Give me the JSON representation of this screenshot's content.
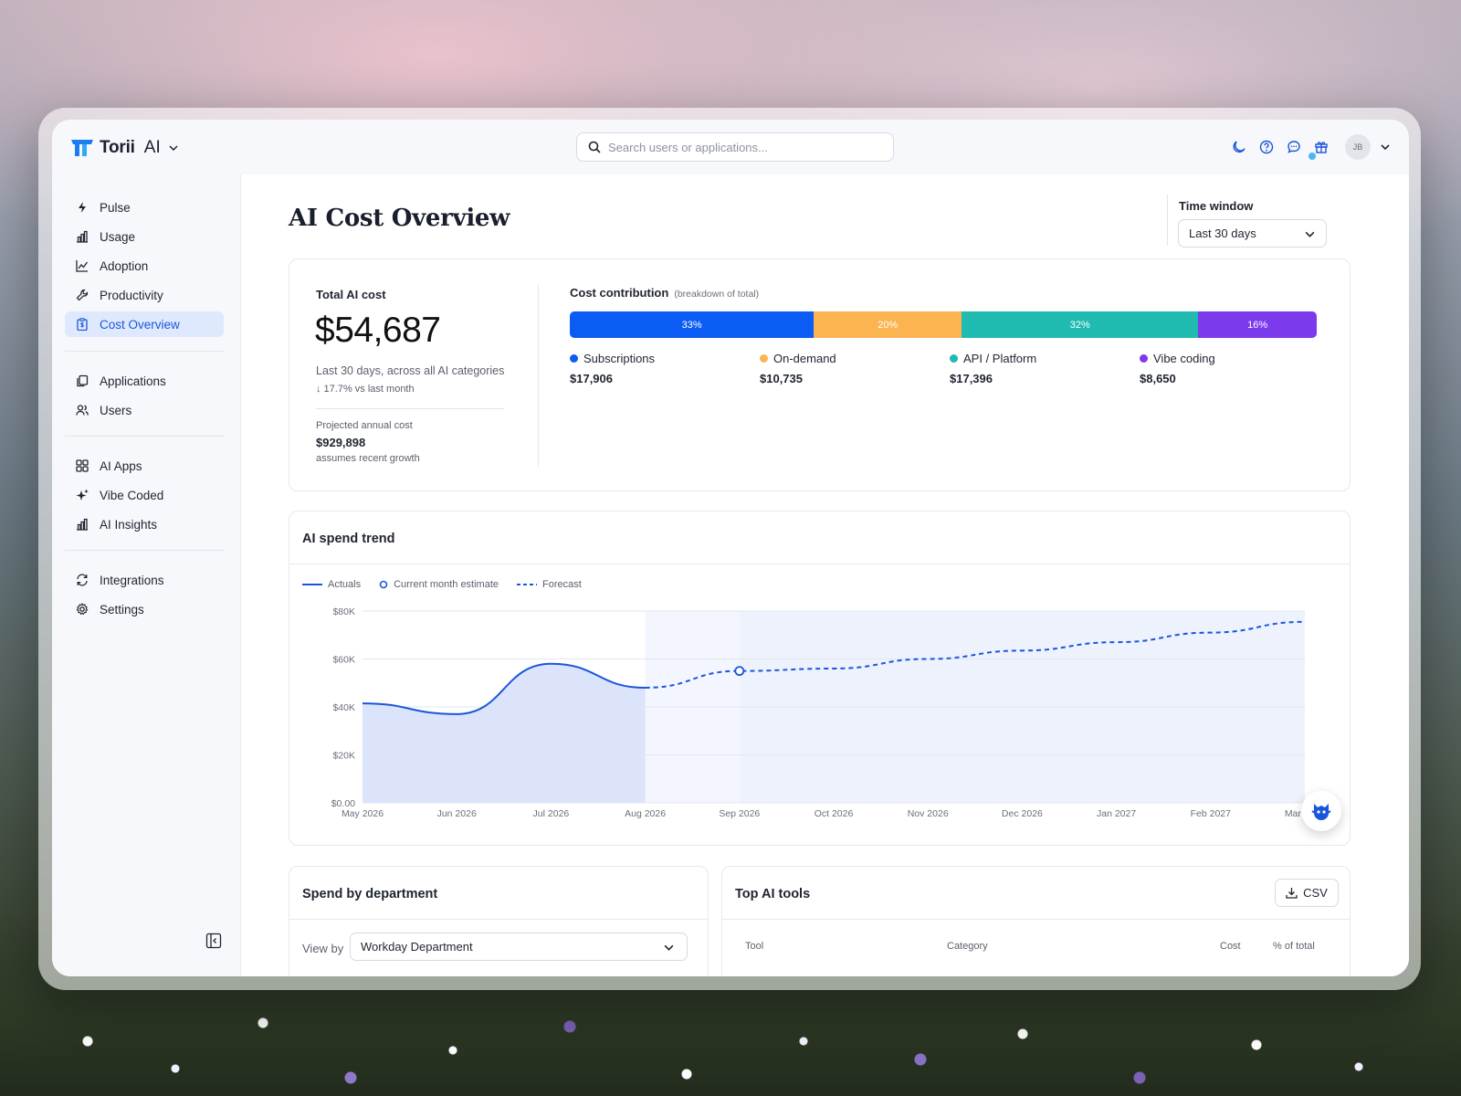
{
  "brand": {
    "name": "Torii",
    "suffix": "AI"
  },
  "search": {
    "placeholder": "Search users or applications..."
  },
  "user": {
    "initials": "JB"
  },
  "sidebar": {
    "items": [
      {
        "label": "Pulse",
        "icon": "bolt-icon"
      },
      {
        "label": "Usage",
        "icon": "bar-chart-icon"
      },
      {
        "label": "Adoption",
        "icon": "line-chart-icon"
      },
      {
        "label": "Productivity",
        "icon": "wrench-icon"
      },
      {
        "label": "Cost Overview",
        "icon": "clipboard-dollar-icon",
        "active": true
      },
      {
        "label": "Applications",
        "icon": "copy-icon"
      },
      {
        "label": "Users",
        "icon": "users-icon"
      },
      {
        "label": "AI Apps",
        "icon": "grid-icon"
      },
      {
        "label": "Vibe Coded",
        "icon": "sparkles-icon"
      },
      {
        "label": "AI Insights",
        "icon": "bar-chart-icon"
      },
      {
        "label": "Integrations",
        "icon": "refresh-icon"
      },
      {
        "label": "Settings",
        "icon": "gear-icon"
      }
    ]
  },
  "page": {
    "title": "AI Cost Overview"
  },
  "time_window": {
    "label": "Time window",
    "value": "Last 30 days"
  },
  "cost": {
    "label": "Total AI cost",
    "total": "$54,687",
    "subtitle": "Last 30 days, across all AI categories",
    "delta": "↓ 17.7% vs last month",
    "projected_label": "Projected annual cost",
    "projected_value": "$929,898",
    "projected_note": "assumes recent growth"
  },
  "contribution": {
    "title": "Cost contribution",
    "subtitle": "(breakdown of total)",
    "segments": [
      {
        "name": "Subscriptions",
        "pct_label": "33%",
        "value": "$17,906",
        "share": 0.33,
        "color": "#0b5cf5"
      },
      {
        "name": "On-demand",
        "pct_label": "20%",
        "value": "$10,735",
        "share": 0.2,
        "color": "#fbb450"
      },
      {
        "name": "API / Platform",
        "pct_label": "32%",
        "value": "$17,396",
        "share": 0.32,
        "color": "#1fbab0"
      },
      {
        "name": "Vibe coding",
        "pct_label": "16%",
        "value": "$8,650",
        "share": 0.16,
        "color": "#7c3aed"
      }
    ]
  },
  "trend": {
    "title": "AI spend trend",
    "legend": {
      "actuals": "Actuals",
      "estimate": "Current month estimate",
      "forecast": "Forecast"
    }
  },
  "chart_data": {
    "type": "line",
    "title": "AI spend trend",
    "categories": [
      "May 2026",
      "Jun 2026",
      "Jul 2026",
      "Aug 2026",
      "Sep 2026",
      "Oct 2026",
      "Nov 2026",
      "Dec 2026",
      "Jan 2027",
      "Feb 2027",
      "Mar 2027"
    ],
    "y_ticks": [
      "$0.00",
      "$20K",
      "$40K",
      "$60K",
      "$80K"
    ],
    "ylim": [
      0,
      80000
    ],
    "series": [
      {
        "name": "Actuals",
        "values": [
          41500,
          37000,
          58000,
          48000,
          null,
          null,
          null,
          null,
          null,
          null,
          null
        ]
      },
      {
        "name": "Current month estimate",
        "values": [
          null,
          null,
          null,
          null,
          55000,
          null,
          null,
          null,
          null,
          null,
          null
        ]
      },
      {
        "name": "Forecast",
        "values": [
          null,
          null,
          null,
          48000,
          55000,
          56000,
          60000,
          63500,
          67000,
          71000,
          75500
        ]
      }
    ],
    "colors": {
      "line": "#1a56db",
      "fill_actual": "#dbe4fb",
      "fill_forecast": "#eef2fd"
    },
    "grid": true,
    "legend_position": "top-left"
  },
  "department": {
    "title": "Spend by department",
    "view_by_label": "View by",
    "view_by_value": "Workday Department"
  },
  "tools": {
    "title": "Top AI tools",
    "csv_label": "CSV",
    "columns": [
      "Tool",
      "Category",
      "Cost",
      "% of total"
    ]
  }
}
